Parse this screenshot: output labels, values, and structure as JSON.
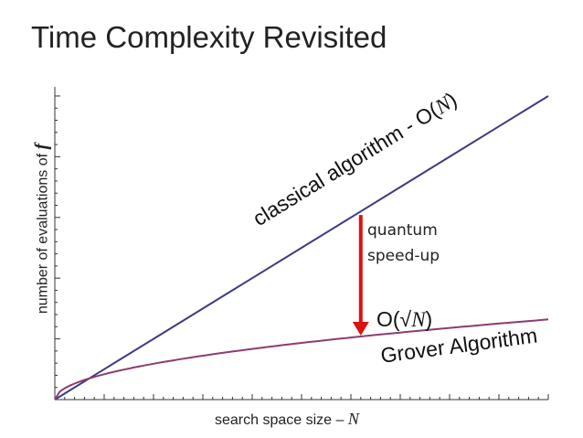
{
  "title": "Time Complexity Revisited",
  "chart_data": {
    "type": "line",
    "title": "",
    "xlabel_text": "search space size – ",
    "xlabel_var": "N",
    "ylabel_text": "number of evaluations of ",
    "ylabel_var": "f",
    "x": [
      0,
      1,
      2,
      3,
      4,
      5,
      6,
      7,
      8,
      9,
      10
    ],
    "series": [
      {
        "name": "classical algorithm - O(N)",
        "function": "linear",
        "color": "#3d3a85",
        "values": [
          0,
          1,
          2,
          3,
          4,
          5,
          6,
          7,
          8,
          9,
          10
        ]
      },
      {
        "name": "Grover Algorithm O(√N)",
        "function": "sqrt",
        "color": "#8b3d6e",
        "values": [
          0,
          0.79,
          1.21,
          1.46,
          1.67,
          1.86,
          2.04,
          2.2,
          2.35,
          2.5,
          2.64
        ]
      }
    ],
    "xlim": [
      0,
      10
    ],
    "ylim": [
      0,
      10.3
    ],
    "grid": false,
    "annotations": {
      "classical_label": "classical algorithm - O(",
      "classical_var": "N",
      "classical_close": ")",
      "grover_label": "Grover Algorithm",
      "sqrt_prefix": "O(√",
      "sqrt_var": "N",
      "sqrt_close": ")",
      "speedup_line1": "quantum",
      "speedup_line2": "speed-up",
      "arrow_color": "#dd1111",
      "arrow_x": 6.2
    }
  }
}
